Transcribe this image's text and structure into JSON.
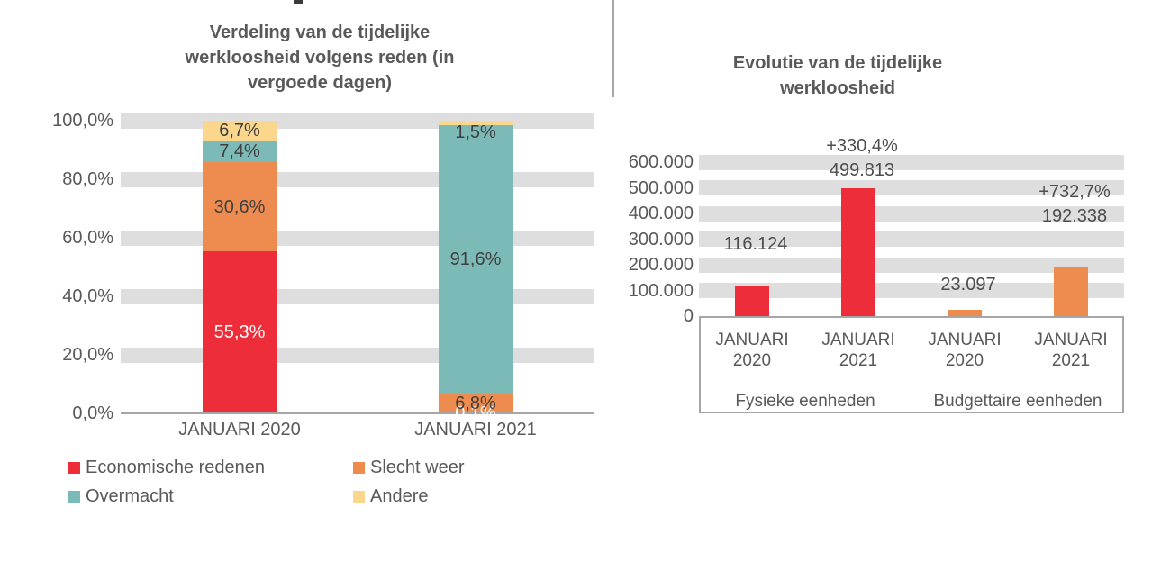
{
  "colors": {
    "grid_band": "#DEDEDE",
    "axis_line": "#A6A6A6",
    "axis_text": "#595959",
    "data_label_dark": "#3F3F3F",
    "data_label_light": "#FFFFFF"
  },
  "chart_data": [
    {
      "type": "stacked-bar-100pct",
      "title": "Verdeling van de tijdelijke werkloosheid volgens reden (in vergoede dagen)",
      "categories": [
        "JANUARI 2020",
        "JANUARI 2021"
      ],
      "series": [
        {
          "name": "Economische redenen",
          "color": "#ED2D39",
          "label_color": "#FFFFFF",
          "values": [
            55.3,
            0.1
          ],
          "labels": [
            "55,3%",
            "0,1%"
          ]
        },
        {
          "name": "Slecht weer",
          "color": "#EE8B4F",
          "label_color": "#3F3F3F",
          "values": [
            30.6,
            6.8
          ],
          "labels": [
            "30,6%",
            "6,8%"
          ]
        },
        {
          "name": "Overmacht",
          "color": "#7CBAB8",
          "label_color": "#3F3F3F",
          "values": [
            7.4,
            91.6
          ],
          "labels": [
            "7,4%",
            "91,6%"
          ]
        },
        {
          "name": "Andere",
          "color": "#FBD78D",
          "label_color": "#3F3F3F",
          "values": [
            6.7,
            1.5
          ],
          "labels": [
            "6,7%",
            "1,5%"
          ]
        }
      ],
      "y_ticks": [
        {
          "value": 100,
          "label": "100,0%"
        },
        {
          "value": 80,
          "label": "80,0%"
        },
        {
          "value": 60,
          "label": "60,0%"
        },
        {
          "value": 40,
          "label": "40,0%"
        },
        {
          "value": 20,
          "label": "20,0%"
        },
        {
          "value": 0,
          "label": "0,0%"
        }
      ],
      "ylim": [
        0,
        100
      ],
      "grid": "thick-horizontal-bands",
      "legend_position": "bottom"
    },
    {
      "type": "bar",
      "title": "Evolutie van de tijdelijke werkloosheid",
      "groups": [
        {
          "label": "Fysieke eenheden",
          "color": "#ED2D39",
          "bars": [
            {
              "category": "JANUARI\n2020",
              "value": 116124,
              "value_label": "116.124"
            },
            {
              "category": "JANUARI\n2021",
              "value": 499813,
              "value_label": "499.813",
              "pct_label": "+330,4%"
            }
          ]
        },
        {
          "label": "Budgettaire eenheden",
          "color": "#EE8B4F",
          "bars": [
            {
              "category": "JANUARI\n2020",
              "value": 23097,
              "value_label": "23.097"
            },
            {
              "category": "JANUARI\n2021",
              "value": 192338,
              "value_label": "192.338",
              "pct_label": "+732,7%"
            }
          ]
        }
      ],
      "y_ticks": [
        {
          "value": 600000,
          "label": "600.000"
        },
        {
          "value": 500000,
          "label": "500.000"
        },
        {
          "value": 400000,
          "label": "400.000"
        },
        {
          "value": 300000,
          "label": "300.000"
        },
        {
          "value": 200000,
          "label": "200.000"
        },
        {
          "value": 100000,
          "label": "100.000"
        },
        {
          "value": 0,
          "label": "0"
        }
      ],
      "ylim": [
        0,
        600000
      ],
      "grid": "thick-horizontal-bands"
    }
  ]
}
